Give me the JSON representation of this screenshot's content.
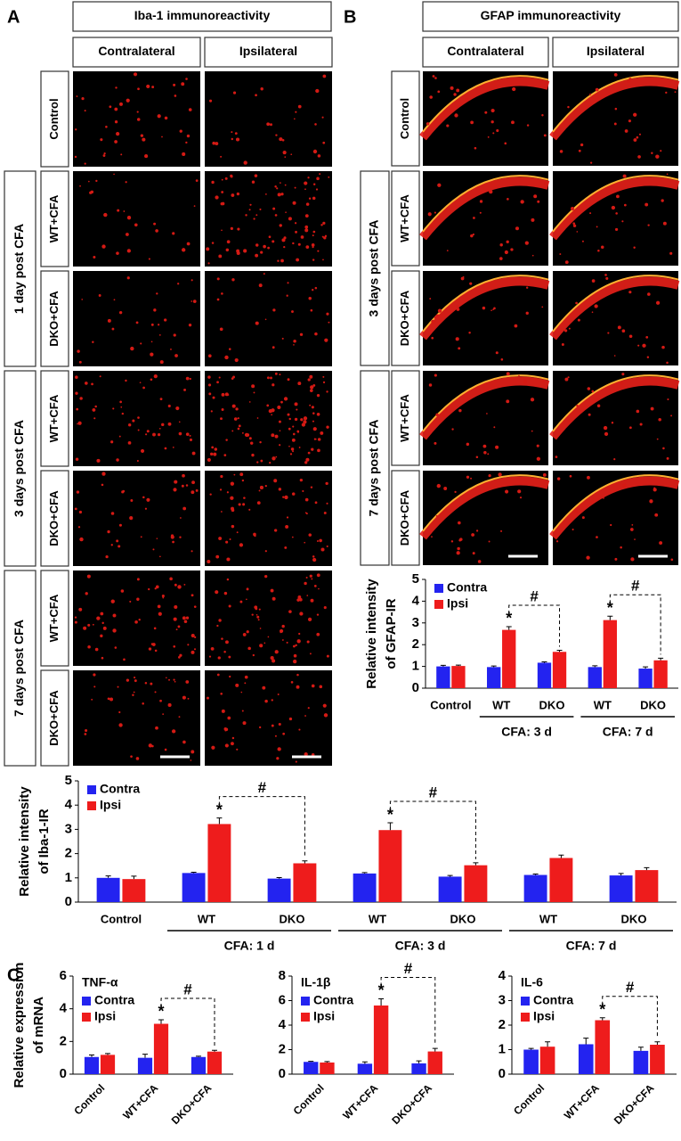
{
  "panels": {
    "A": {
      "label": "A",
      "title": "Iba-1 immunoreactivity",
      "columns": [
        "Contralateral",
        "Ipsilateral"
      ],
      "rows": [
        "Control",
        "WT+CFA",
        "DKO+CFA",
        "WT+CFA",
        "DKO+CFA",
        "WT+CFA",
        "DKO+CFA"
      ],
      "groups": [
        "1 day post CFA",
        "3 days post CFA",
        "7 days post CFA"
      ]
    },
    "B": {
      "label": "B",
      "title": "GFAP immunoreactivity",
      "columns": [
        "Contralateral",
        "Ipsilateral"
      ],
      "rows": [
        "Control",
        "WT+CFA",
        "DKO+CFA",
        "WT+CFA",
        "DKO+CFA"
      ],
      "groups": [
        "3 days post CFA",
        "7 days post CFA"
      ]
    },
    "C": {
      "label": "C"
    }
  },
  "chart_data": [
    {
      "type": "bar",
      "y_label": [
        "Relative intensity",
        "of GFAP-IR"
      ],
      "categories": [
        "Control",
        "WT",
        "DKO",
        "WT",
        "DKO"
      ],
      "group_labels": [
        "CFA: 3 d",
        "CFA: 7 d"
      ],
      "series": [
        {
          "name": "Contra",
          "color": "#2323f0",
          "values": [
            1.0,
            0.97,
            1.17,
            0.97,
            0.9
          ],
          "errors": [
            0.05,
            0.05,
            0.04,
            0.06,
            0.08
          ]
        },
        {
          "name": "Ipsi",
          "color": "#ee1c1c",
          "values": [
            1.02,
            2.68,
            1.67,
            3.13,
            1.28
          ],
          "errors": [
            0.04,
            0.15,
            0.07,
            0.18,
            0.1
          ]
        }
      ],
      "ylim": [
        0,
        5
      ],
      "yticks": [
        0,
        1,
        2,
        3,
        4,
        5
      ],
      "annotations": [
        "*",
        "#",
        "*",
        "#"
      ]
    },
    {
      "type": "bar",
      "y_label": [
        "Relative intensity",
        "of Iba-1-IR"
      ],
      "categories": [
        "Control",
        "WT",
        "DKO",
        "WT",
        "DKO",
        "WT",
        "DKO"
      ],
      "group_labels": [
        "CFA: 1 d",
        "CFA: 3 d",
        "CFA: 7 d"
      ],
      "series": [
        {
          "name": "Contra",
          "color": "#2323f0",
          "values": [
            1.0,
            1.2,
            0.97,
            1.18,
            1.05,
            1.12,
            1.1
          ],
          "errors": [
            0.08,
            0.03,
            0.04,
            0.04,
            0.05,
            0.04,
            0.08
          ]
        },
        {
          "name": "Ipsi",
          "color": "#ee1c1c",
          "values": [
            0.95,
            3.22,
            1.6,
            2.97,
            1.52,
            1.82,
            1.32
          ],
          "errors": [
            0.12,
            0.25,
            0.1,
            0.3,
            0.1,
            0.12,
            0.1
          ]
        }
      ],
      "ylim": [
        0,
        5
      ],
      "yticks": [
        0,
        1,
        2,
        3,
        4,
        5
      ],
      "annotations": [
        "*",
        "#",
        "*",
        "#"
      ]
    },
    {
      "type": "bar",
      "title": "TNF-α",
      "y_label": [
        "Relative expression",
        "of mRNA"
      ],
      "categories": [
        "Control",
        "WT+CFA",
        "DKO+CFA"
      ],
      "series": [
        {
          "name": "Contra",
          "color": "#2323f0",
          "values": [
            1.05,
            1.0,
            1.05
          ],
          "errors": [
            0.12,
            0.22,
            0.05
          ]
        },
        {
          "name": "Ipsi",
          "color": "#ee1c1c",
          "values": [
            1.18,
            3.08,
            1.38
          ],
          "errors": [
            0.08,
            0.25,
            0.08
          ]
        }
      ],
      "ylim": [
        0,
        6
      ],
      "yticks": [
        0,
        2,
        4,
        6
      ],
      "annotations": [
        "*",
        "#"
      ]
    },
    {
      "type": "bar",
      "title": "IL-1β",
      "categories": [
        "Control",
        "WT+CFA",
        "DKO+CFA"
      ],
      "series": [
        {
          "name": "Contra",
          "color": "#2323f0",
          "values": [
            1.0,
            0.85,
            0.88
          ],
          "errors": [
            0.05,
            0.15,
            0.2
          ]
        },
        {
          "name": "Ipsi",
          "color": "#ee1c1c",
          "values": [
            0.95,
            5.6,
            1.85
          ],
          "errors": [
            0.08,
            0.55,
            0.25
          ]
        }
      ],
      "ylim": [
        0,
        8
      ],
      "yticks": [
        0,
        2,
        4,
        6,
        8
      ],
      "annotations": [
        "*",
        "#"
      ]
    },
    {
      "type": "bar",
      "title": "IL-6",
      "categories": [
        "Control",
        "WT+CFA",
        "DKO+CFA"
      ],
      "series": [
        {
          "name": "Contra",
          "color": "#2323f0",
          "values": [
            1.0,
            1.22,
            0.95
          ],
          "errors": [
            0.05,
            0.25,
            0.15
          ]
        },
        {
          "name": "Ipsi",
          "color": "#ee1c1c",
          "values": [
            1.12,
            2.2,
            1.2
          ],
          "errors": [
            0.2,
            0.1,
            0.12
          ]
        }
      ],
      "ylim": [
        0,
        4
      ],
      "yticks": [
        0,
        1,
        2,
        3,
        4
      ],
      "annotations": [
        "*",
        "#"
      ]
    }
  ]
}
